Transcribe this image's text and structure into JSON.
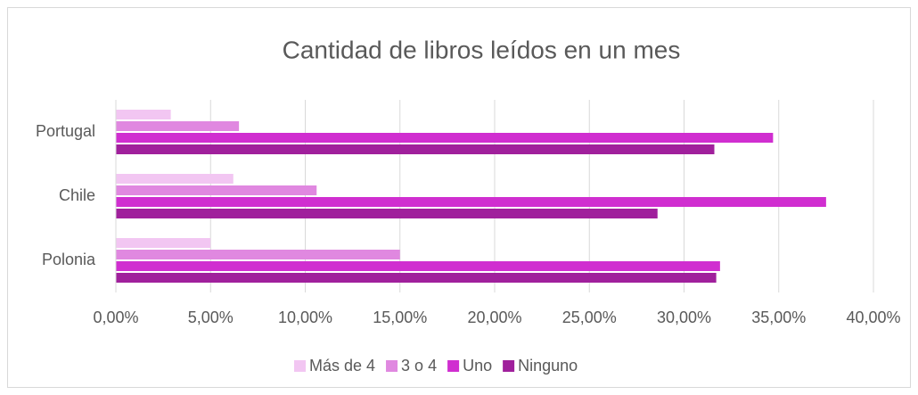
{
  "chart_data": {
    "type": "bar",
    "orientation": "horizontal",
    "title": "Cantidad de libros leídos en un mes",
    "categories": [
      "Portugal",
      "Chile",
      "Polonia"
    ],
    "series": [
      {
        "name": "Más de 4",
        "color": "#f2c6f2",
        "values": [
          2.9,
          6.2,
          5.0
        ]
      },
      {
        "name": "3 o 4",
        "color": "#e088e0",
        "values": [
          6.5,
          10.6,
          15.0
        ]
      },
      {
        "name": "Uno",
        "color": "#d02ed0",
        "values": [
          34.7,
          37.5,
          31.9
        ]
      },
      {
        "name": "Ninguno",
        "color": "#a0209c",
        "values": [
          31.6,
          28.6,
          31.7
        ]
      }
    ],
    "xlim": [
      0,
      40
    ],
    "xticks": [
      {
        "value": 0,
        "label": "0,00%"
      },
      {
        "value": 5,
        "label": "5,00%"
      },
      {
        "value": 10,
        "label": "10,00%"
      },
      {
        "value": 15,
        "label": "15,00%"
      },
      {
        "value": 20,
        "label": "20,00%"
      },
      {
        "value": 25,
        "label": "25,00%"
      },
      {
        "value": 30,
        "label": "30,00%"
      },
      {
        "value": 35,
        "label": "35,00%"
      },
      {
        "value": 40,
        "label": "40,00%"
      }
    ],
    "grid": true,
    "legend": "bottom"
  }
}
